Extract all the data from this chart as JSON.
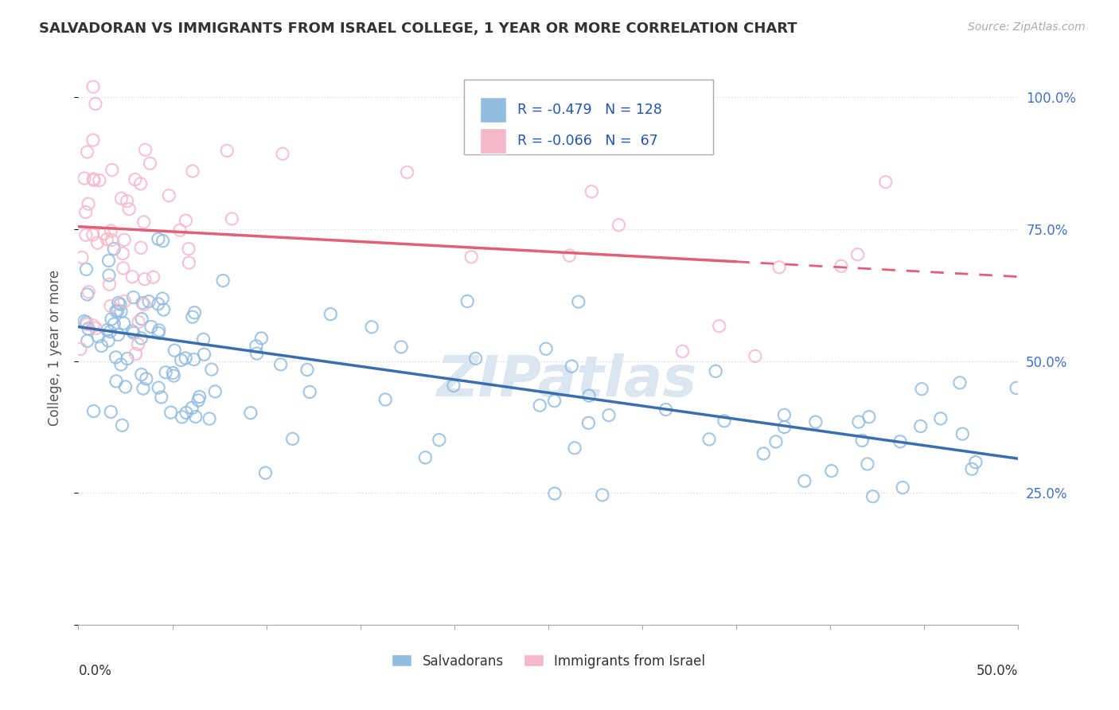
{
  "title": "SALVADORAN VS IMMIGRANTS FROM ISRAEL COLLEGE, 1 YEAR OR MORE CORRELATION CHART",
  "source": "Source: ZipAtlas.com",
  "ylabel": "College, 1 year or more",
  "xmin": 0.0,
  "xmax": 0.5,
  "ymin": 0.0,
  "ymax": 1.05,
  "blue_R": -0.479,
  "blue_N": 128,
  "pink_R": -0.066,
  "pink_N": 67,
  "blue_color": "#92bce0",
  "blue_edge_color": "#92bce0",
  "blue_line_color": "#3a6fad",
  "pink_color": "#f5b8c8",
  "pink_edge_color": "#f5b8c8",
  "pink_line_color": "#e0607a",
  "legend_label1": "Salvadorans",
  "legend_label2": "Immigrants from Israel",
  "blue_trend_x0": 0.0,
  "blue_trend_x1": 0.5,
  "blue_trend_y0": 0.565,
  "blue_trend_y1": 0.315,
  "pink_trend_x0": 0.0,
  "pink_trend_x1": 0.5,
  "pink_trend_y0": 0.755,
  "pink_trend_y1": 0.66,
  "ytick_positions": [
    0.0,
    0.25,
    0.5,
    0.75,
    1.0
  ],
  "ytick_labels_right": [
    "",
    "25.0%",
    "50.0%",
    "75.0%",
    "100.0%"
  ],
  "grid_color": "#dddddd",
  "watermark_text": "ZIPatlas",
  "watermark_color": "#dce6f0"
}
